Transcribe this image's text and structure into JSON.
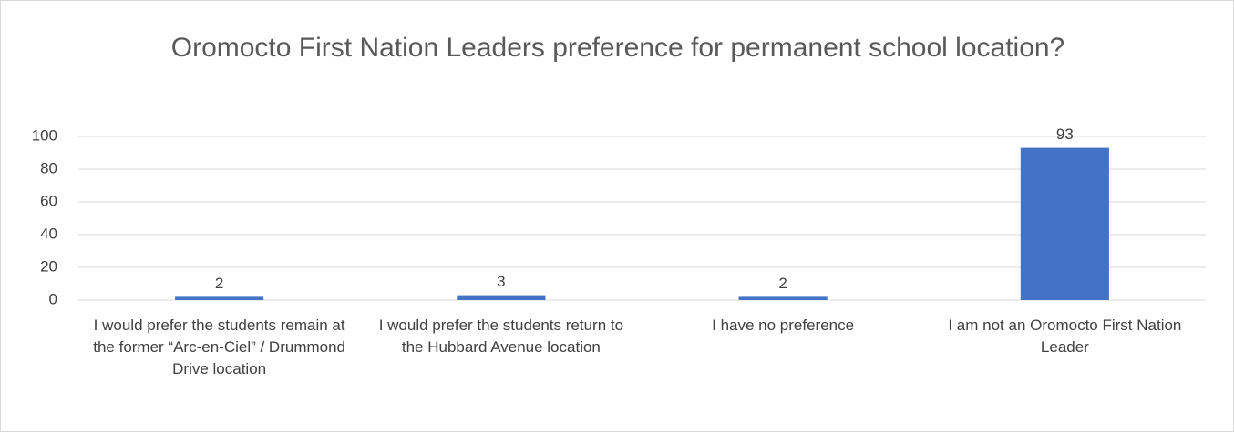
{
  "chart_data": {
    "type": "bar",
    "title": "Oromocto First Nation Leaders preference for permanent school location?",
    "categories": [
      "I would prefer the students remain at the former “Arc-en-Ciel” / Drummond Drive location",
      "I would prefer the students return to the Hubbard Avenue location",
      "I have no preference",
      "I am not an Oromocto First Nation Leader"
    ],
    "values": [
      2,
      3,
      2,
      93
    ],
    "color": "#4472c4",
    "ylim": [
      0,
      100
    ],
    "yticks": [
      0,
      20,
      40,
      60,
      80,
      100
    ],
    "grid": true
  }
}
